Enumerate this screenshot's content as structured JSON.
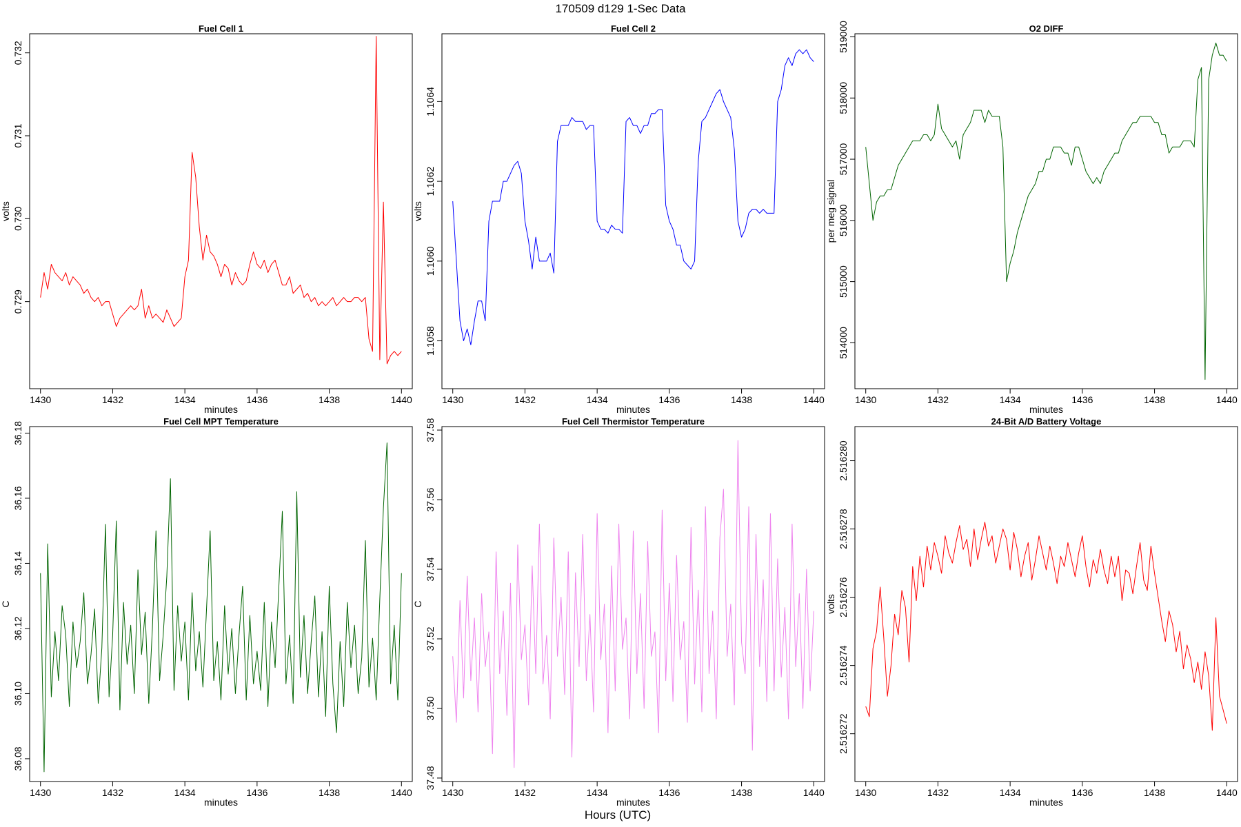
{
  "figure": {
    "title": "170509   d129   1-Sec Data",
    "outer_xlabel": "Hours (UTC)"
  },
  "chart_data": [
    {
      "type": "line",
      "title": "Fuel Cell 1",
      "xlabel": "minutes",
      "ylabel": "volts",
      "xlim": [
        1429.7,
        1440.3
      ],
      "ylim": [
        0.72795,
        0.73223
      ],
      "xticks": [
        "1430",
        "1432",
        "1434",
        "1436",
        "1438",
        "1440"
      ],
      "yticks": [
        "0.729",
        "0.730",
        "0.731",
        "0.732"
      ],
      "color": "#ff0000",
      "series": [
        {
          "x_start": 1430,
          "x_step": 0.1,
          "y": [
            0.72905,
            0.72935,
            0.72915,
            0.72945,
            0.72935,
            0.7293,
            0.72925,
            0.72935,
            0.7292,
            0.7293,
            0.72925,
            0.7292,
            0.7291,
            0.72915,
            0.72905,
            0.729,
            0.72905,
            0.72895,
            0.729,
            0.729,
            0.72885,
            0.7287,
            0.7288,
            0.72885,
            0.7289,
            0.72895,
            0.7289,
            0.72895,
            0.72915,
            0.7288,
            0.72895,
            0.7288,
            0.72885,
            0.7288,
            0.72875,
            0.7289,
            0.7288,
            0.7287,
            0.72875,
            0.7288,
            0.7293,
            0.7295,
            0.7308,
            0.7305,
            0.7299,
            0.7295,
            0.7298,
            0.7296,
            0.72955,
            0.72945,
            0.7293,
            0.72945,
            0.7294,
            0.7292,
            0.72935,
            0.72925,
            0.7292,
            0.72925,
            0.72945,
            0.7296,
            0.72945,
            0.7294,
            0.7295,
            0.72935,
            0.72945,
            0.7295,
            0.72935,
            0.7292,
            0.7292,
            0.7293,
            0.7291,
            0.72915,
            0.7292,
            0.72905,
            0.7291,
            0.729,
            0.72905,
            0.72895,
            0.729,
            0.72895,
            0.729,
            0.72905,
            0.72895,
            0.729,
            0.72905,
            0.729,
            0.729,
            0.72905,
            0.72905,
            0.729,
            0.72905,
            0.72855,
            0.7284,
            0.7322,
            0.7283,
            0.7302,
            0.72825,
            0.72835,
            0.7284,
            0.72835,
            0.7284
          ]
        }
      ]
    },
    {
      "type": "line",
      "title": "Fuel Cell 2",
      "xlabel": "minutes",
      "ylabel": "volts",
      "xlim": [
        1429.7,
        1440.3
      ],
      "ylim": [
        1.10568,
        1.10657
      ],
      "xticks": [
        "1430",
        "1432",
        "1434",
        "1436",
        "1438",
        "1440"
      ],
      "yticks": [
        "1.1058",
        "1.1060",
        "1.1062",
        "1.1064"
      ],
      "color": "#0000ff",
      "series": [
        {
          "x_start": 1430,
          "x_step": 0.1,
          "y": [
            1.10615,
            1.106,
            1.10585,
            1.1058,
            1.10583,
            1.10579,
            1.10585,
            1.1059,
            1.1059,
            1.10585,
            1.1061,
            1.10615,
            1.10615,
            1.10615,
            1.1062,
            1.1062,
            1.10622,
            1.10624,
            1.10625,
            1.10622,
            1.1061,
            1.10605,
            1.10598,
            1.10606,
            1.106,
            1.106,
            1.106,
            1.10602,
            1.10597,
            1.1063,
            1.10634,
            1.10634,
            1.10634,
            1.10636,
            1.10635,
            1.10635,
            1.10635,
            1.10633,
            1.10634,
            1.10634,
            1.1061,
            1.10608,
            1.10608,
            1.10607,
            1.10609,
            1.10608,
            1.10608,
            1.10607,
            1.10635,
            1.10636,
            1.10634,
            1.10634,
            1.10632,
            1.10634,
            1.10634,
            1.10637,
            1.10637,
            1.10638,
            1.10638,
            1.10614,
            1.1061,
            1.10608,
            1.10604,
            1.10604,
            1.106,
            1.10599,
            1.10598,
            1.106,
            1.10625,
            1.10635,
            1.10636,
            1.10638,
            1.1064,
            1.10642,
            1.10643,
            1.1064,
            1.10638,
            1.10636,
            1.10628,
            1.1061,
            1.10606,
            1.10608,
            1.10612,
            1.10613,
            1.10613,
            1.10612,
            1.10613,
            1.10612,
            1.10612,
            1.10612,
            1.1064,
            1.10643,
            1.10649,
            1.10651,
            1.10649,
            1.10652,
            1.10653,
            1.10652,
            1.10653,
            1.10651,
            1.1065
          ]
        }
      ]
    },
    {
      "type": "line",
      "title": "O2 DIFF",
      "xlabel": "minutes",
      "ylabel": "per meg signal",
      "xlim": [
        1429.7,
        1440.3
      ],
      "ylim": [
        513250,
        519050
      ],
      "xticks": [
        "1430",
        "1432",
        "1434",
        "1436",
        "1438",
        "1440"
      ],
      "yticks": [
        "514000",
        "515000",
        "516000",
        "517000",
        "518000",
        "519000"
      ],
      "color": "#006400",
      "series": [
        {
          "x_start": 1430,
          "x_step": 0.1,
          "y": [
            517200,
            516600,
            516000,
            516300,
            516400,
            516400,
            516500,
            516500,
            516700,
            516900,
            517000,
            517100,
            517200,
            517300,
            517300,
            517300,
            517400,
            517400,
            517300,
            517400,
            517900,
            517500,
            517400,
            517300,
            517200,
            517300,
            517000,
            517400,
            517500,
            517600,
            517800,
            517800,
            517800,
            517600,
            517800,
            517700,
            517700,
            517700,
            517200,
            515000,
            515300,
            515500,
            515800,
            516000,
            516200,
            516400,
            516500,
            516600,
            516800,
            516800,
            517000,
            517000,
            517200,
            517200,
            517200,
            517100,
            517100,
            516900,
            517200,
            517200,
            517000,
            516800,
            516700,
            516600,
            516700,
            516600,
            516800,
            516900,
            517000,
            517100,
            517100,
            517300,
            517400,
            517500,
            517600,
            517600,
            517700,
            517700,
            517700,
            517700,
            517600,
            517600,
            517400,
            517400,
            517100,
            517200,
            517200,
            517200,
            517300,
            517300,
            517300,
            517200,
            518300,
            518500,
            513400,
            518300,
            518700,
            518900,
            518700,
            518700,
            518600
          ]
        }
      ]
    },
    {
      "type": "line",
      "title": "Fuel Cell MPT Temperature",
      "xlabel": "minutes",
      "ylabel": "C",
      "xlim": [
        1429.7,
        1440.3
      ],
      "ylim": [
        36.073,
        36.182
      ],
      "xticks": [
        "1430",
        "1432",
        "1434",
        "1436",
        "1438",
        "1440"
      ],
      "yticks": [
        "36.08",
        "36.10",
        "36.12",
        "36.14",
        "36.16",
        "36.18"
      ],
      "color": "#006400",
      "series": [
        {
          "x_start": 1430,
          "x_step": 0.1,
          "y": [
            36.137,
            36.076,
            36.146,
            36.099,
            36.119,
            36.104,
            36.127,
            36.118,
            36.096,
            36.122,
            36.108,
            36.116,
            36.131,
            36.103,
            36.112,
            36.126,
            36.097,
            36.114,
            36.152,
            36.099,
            36.118,
            36.153,
            36.095,
            36.128,
            36.109,
            36.121,
            36.1,
            36.138,
            36.112,
            36.125,
            36.097,
            36.12,
            36.15,
            36.104,
            36.118,
            36.136,
            36.166,
            36.101,
            36.127,
            36.11,
            36.122,
            36.098,
            36.131,
            36.107,
            36.119,
            36.102,
            36.126,
            36.15,
            36.104,
            36.116,
            36.098,
            36.127,
            36.106,
            36.12,
            36.1,
            36.118,
            36.133,
            36.098,
            36.124,
            36.103,
            36.113,
            36.101,
            36.128,
            36.096,
            36.122,
            36.108,
            36.132,
            36.156,
            36.103,
            36.118,
            36.097,
            36.162,
            36.105,
            36.124,
            36.1,
            36.116,
            36.13,
            36.099,
            36.119,
            36.093,
            36.133,
            36.103,
            36.088,
            36.116,
            36.096,
            36.128,
            36.108,
            36.121,
            36.1,
            36.111,
            36.147,
            36.102,
            36.117,
            36.098,
            36.129,
            36.157,
            36.177,
            36.103,
            36.121,
            36.098,
            36.137
          ]
        }
      ]
    },
    {
      "type": "line",
      "title": "Fuel Cell Thermistor Temperature",
      "xlabel": "minutes",
      "ylabel": "C",
      "xlim": [
        1429.7,
        1440.3
      ],
      "ylim": [
        37.479,
        37.581
      ],
      "xticks": [
        "1430",
        "1432",
        "1434",
        "1436",
        "1438",
        "1440"
      ],
      "yticks": [
        "37.48",
        "37.50",
        "37.52",
        "37.54",
        "37.56",
        "37.58"
      ],
      "color": "#ee82ee",
      "series": [
        {
          "x_start": 1430,
          "x_step": 0.1,
          "y": [
            37.515,
            37.496,
            37.531,
            37.503,
            37.538,
            37.508,
            37.526,
            37.499,
            37.533,
            37.512,
            37.522,
            37.487,
            37.545,
            37.51,
            37.528,
            37.498,
            37.536,
            37.483,
            37.547,
            37.514,
            37.524,
            37.501,
            37.541,
            37.51,
            37.553,
            37.507,
            37.521,
            37.497,
            37.549,
            37.515,
            37.532,
            37.504,
            37.545,
            37.486,
            37.539,
            37.512,
            37.55,
            37.508,
            37.527,
            37.499,
            37.556,
            37.514,
            37.53,
            37.493,
            37.541,
            37.505,
            37.553,
            37.517,
            37.526,
            37.497,
            37.551,
            37.51,
            37.533,
            37.5,
            37.548,
            37.515,
            37.522,
            37.493,
            37.557,
            37.508,
            37.536,
            37.502,
            37.544,
            37.514,
            37.525,
            37.496,
            37.552,
            37.507,
            37.534,
            37.499,
            37.558,
            37.51,
            37.528,
            37.497,
            37.549,
            37.563,
            37.515,
            37.53,
            37.501,
            37.577,
            37.519,
            37.51,
            37.558,
            37.488,
            37.55,
            37.512,
            37.537,
            37.502,
            37.556,
            37.505,
            37.543,
            37.509,
            37.529,
            37.497,
            37.553,
            37.512,
            37.533,
            37.5,
            37.54,
            37.505,
            37.528
          ]
        }
      ]
    },
    {
      "type": "line",
      "title": "24-Bit A/D Battery Voltage",
      "xlabel": "minutes",
      "ylabel": "volts",
      "xlim": [
        1429.7,
        1440.3
      ],
      "ylim": [
        2.5162706,
        2.516281
      ],
      "xticks": [
        "1430",
        "1432",
        "1434",
        "1436",
        "1438",
        "1440"
      ],
      "yticks": [
        "2.516272",
        "2.516274",
        "2.516276",
        "2.516278",
        "2.516280"
      ],
      "color": "#ff0000",
      "series": [
        {
          "x_start": 1430,
          "x_step": 0.1,
          "y": [
            2.5162728,
            2.5162725,
            2.5162745,
            2.516275,
            2.5162763,
            2.5162748,
            2.5162731,
            2.516274,
            2.5162755,
            2.5162749,
            2.5162762,
            2.5162757,
            2.5162741,
            2.5162769,
            2.5162759,
            2.5162772,
            2.5162763,
            2.5162775,
            2.5162768,
            2.5162776,
            2.5162772,
            2.5162767,
            2.5162778,
            2.5162773,
            2.516277,
            2.5162776,
            2.5162781,
            2.5162774,
            2.5162777,
            2.5162769,
            2.516278,
            2.5162771,
            2.5162777,
            2.5162782,
            2.5162775,
            2.5162778,
            2.516277,
            2.5162775,
            2.516278,
            2.5162777,
            2.5162768,
            2.5162779,
            2.5162774,
            2.5162766,
            2.5162772,
            2.5162776,
            2.5162765,
            2.5162771,
            2.5162778,
            2.5162773,
            2.5162768,
            2.5162775,
            2.516277,
            2.5162764,
            2.5162772,
            2.5162769,
            2.5162776,
            2.5162771,
            2.5162766,
            2.5162773,
            2.5162778,
            2.5162769,
            2.5162763,
            2.5162771,
            2.5162767,
            2.5162774,
            2.5162768,
            2.5162764,
            2.5162772,
            2.5162766,
            2.5162772,
            2.5162759,
            2.5162768,
            2.5162767,
            2.5162761,
            2.5162769,
            2.5162776,
            2.5162765,
            2.5162762,
            2.5162775,
            2.5162767,
            2.516276,
            2.5162753,
            2.5162747,
            2.5162756,
            2.5162752,
            2.5162744,
            2.516275,
            2.5162739,
            2.5162746,
            2.5162742,
            2.5162735,
            2.5162741,
            2.5162733,
            2.5162744,
            2.5162737,
            2.5162721,
            2.5162754,
            2.5162731,
            2.5162727,
            2.5162723
          ]
        }
      ]
    }
  ]
}
